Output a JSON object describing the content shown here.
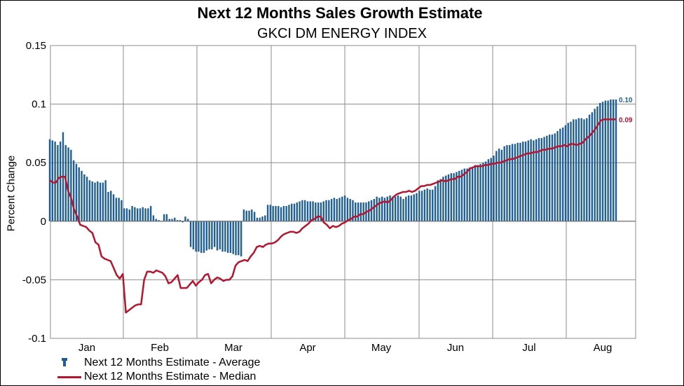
{
  "chart_data": {
    "type": "bar",
    "title": "Next 12 Months Sales Growth Estimate",
    "subtitle": "GKCI DM ENERGY INDEX",
    "ylabel": "Percent Change",
    "xlabel": "",
    "ylim": [
      -0.1,
      0.15
    ],
    "yticks": [
      -0.1,
      -0.05,
      0,
      0.05,
      0.1,
      0.15
    ],
    "ytick_labels": [
      "-0.1",
      "-0.05",
      "0",
      "0.05",
      "0.1",
      "0.15"
    ],
    "month_labels": [
      "Jan",
      "Feb",
      "Mar",
      "Apr",
      "May",
      "Jun",
      "Jul",
      "Aug"
    ],
    "grid": true,
    "legend_position": "bottom-left",
    "series": [
      {
        "name": "Next 12 Months Estimate - Average",
        "type": "bar",
        "color": "#1f5f95",
        "end_label": "0.10",
        "values": [
          0.07,
          0.069,
          0.068,
          0.065,
          0.068,
          0.076,
          0.065,
          0.063,
          0.061,
          0.052,
          0.049,
          0.046,
          0.043,
          0.04,
          0.038,
          0.035,
          0.034,
          0.033,
          0.034,
          0.033,
          0.033,
          0.035,
          0.025,
          0.026,
          0.023,
          0.02,
          0.02,
          0.018,
          0.011,
          0.011,
          0.01,
          0.013,
          0.012,
          0.011,
          0.011,
          0.012,
          0.011,
          0.011,
          0.013,
          0.005,
          0.002,
          0.001,
          0.0,
          0.006,
          0.006,
          0.002,
          0.002,
          0.003,
          0.001,
          0.001,
          -0.001,
          0.004,
          0.002,
          -0.022,
          -0.024,
          -0.026,
          -0.026,
          -0.027,
          -0.027,
          -0.025,
          -0.024,
          -0.024,
          -0.022,
          -0.025,
          -0.024,
          -0.026,
          -0.026,
          -0.027,
          -0.027,
          -0.028,
          -0.029,
          -0.029,
          -0.03,
          0.01,
          0.009,
          0.009,
          0.01,
          0.008,
          0.003,
          0.003,
          0.004,
          0.005,
          0.014,
          0.014,
          0.013,
          0.013,
          0.013,
          0.012,
          0.013,
          0.013,
          0.014,
          0.015,
          0.015,
          0.016,
          0.017,
          0.018,
          0.018,
          0.017,
          0.017,
          0.017,
          0.016,
          0.016,
          0.016,
          0.017,
          0.018,
          0.018,
          0.019,
          0.02,
          0.019,
          0.02,
          0.021,
          0.022,
          0.02,
          0.019,
          0.018,
          0.016,
          0.016,
          0.016,
          0.016,
          0.016,
          0.017,
          0.018,
          0.019,
          0.021,
          0.02,
          0.021,
          0.02,
          0.021,
          0.022,
          0.021,
          0.021,
          0.022,
          0.021,
          0.019,
          0.021,
          0.022,
          0.022,
          0.023,
          0.024,
          0.026,
          0.026,
          0.027,
          0.028,
          0.027,
          0.027,
          0.03,
          0.035,
          0.036,
          0.038,
          0.039,
          0.04,
          0.041,
          0.041,
          0.042,
          0.043,
          0.044,
          0.045,
          0.045,
          0.046,
          0.046,
          0.048,
          0.048,
          0.049,
          0.05,
          0.051,
          0.053,
          0.054,
          0.056,
          0.06,
          0.062,
          0.061,
          0.064,
          0.065,
          0.065,
          0.066,
          0.066,
          0.067,
          0.067,
          0.068,
          0.068,
          0.069,
          0.07,
          0.069,
          0.07,
          0.071,
          0.071,
          0.072,
          0.073,
          0.074,
          0.074,
          0.075,
          0.077,
          0.079,
          0.08,
          0.082,
          0.084,
          0.085,
          0.087,
          0.087,
          0.088,
          0.088,
          0.087,
          0.088,
          0.091,
          0.093,
          0.096,
          0.098,
          0.101,
          0.102,
          0.103,
          0.103,
          0.104,
          0.104,
          0.104
        ]
      },
      {
        "name": "Next 12 Months Estimate - Median",
        "type": "line",
        "color": "#b5152e",
        "end_label": "0.09",
        "values": [
          0.035,
          0.033,
          0.033,
          0.037,
          0.038,
          0.038,
          0.026,
          0.02,
          0.01,
          0.004,
          -0.003,
          -0.004,
          -0.005,
          -0.008,
          -0.01,
          -0.018,
          -0.02,
          -0.03,
          -0.032,
          -0.033,
          -0.034,
          -0.04,
          -0.046,
          -0.049,
          -0.045,
          -0.078,
          -0.076,
          -0.074,
          -0.072,
          -0.071,
          -0.071,
          -0.05,
          -0.043,
          -0.043,
          -0.044,
          -0.042,
          -0.043,
          -0.044,
          -0.047,
          -0.053,
          -0.052,
          -0.049,
          -0.046,
          -0.057,
          -0.057,
          -0.057,
          -0.054,
          -0.051,
          -0.055,
          -0.052,
          -0.05,
          -0.046,
          -0.045,
          -0.053,
          -0.05,
          -0.048,
          -0.049,
          -0.051,
          -0.05,
          -0.05,
          -0.047,
          -0.038,
          -0.035,
          -0.034,
          -0.033,
          -0.034,
          -0.03,
          -0.027,
          -0.022,
          -0.021,
          -0.022,
          -0.02,
          -0.019,
          -0.019,
          -0.018,
          -0.016,
          -0.013,
          -0.011,
          -0.01,
          -0.009,
          -0.009,
          -0.01,
          -0.009,
          -0.006,
          -0.004,
          -0.002,
          0.001,
          0.002,
          0.004,
          0.004,
          -0.001,
          -0.003,
          -0.006,
          -0.004,
          -0.005,
          -0.004,
          -0.002,
          -0.001,
          0.001,
          0.002,
          0.004,
          0.004,
          0.006,
          0.006,
          0.008,
          0.009,
          0.011,
          0.013,
          0.015,
          0.016,
          0.017,
          0.016,
          0.018,
          0.021,
          0.023,
          0.024,
          0.025,
          0.025,
          0.026,
          0.025,
          0.026,
          0.028,
          0.03,
          0.03,
          0.031,
          0.031,
          0.032,
          0.033,
          0.034,
          0.035,
          0.034,
          0.035,
          0.036,
          0.036,
          0.038,
          0.038,
          0.04,
          0.042,
          0.045,
          0.046,
          0.047,
          0.047,
          0.047,
          0.048,
          0.048,
          0.049,
          0.049,
          0.05,
          0.05,
          0.051,
          0.052,
          0.053,
          0.053,
          0.054,
          0.055,
          0.056,
          0.057,
          0.058,
          0.058,
          0.059,
          0.059,
          0.06,
          0.061,
          0.061,
          0.062,
          0.062,
          0.063,
          0.064,
          0.064,
          0.065,
          0.064,
          0.066,
          0.066,
          0.065,
          0.066,
          0.067,
          0.07,
          0.072,
          0.075,
          0.078,
          0.082,
          0.086,
          0.087,
          0.087,
          0.087,
          0.087,
          0.087
        ]
      }
    ]
  }
}
